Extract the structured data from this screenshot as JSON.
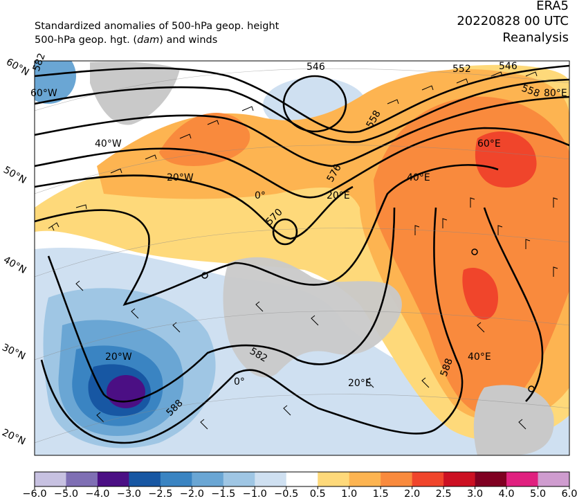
{
  "header": {
    "title_line1": "Standardized anomalies of 500-hPa geop. height",
    "title_line2_pre": "500-hPa geop. hgt. (",
    "title_line2_unit": "dam",
    "title_line2_post": ") and winds",
    "source": "ERA5",
    "datetime": "20220828 00 UTC",
    "product": "Reanalysis"
  },
  "map": {
    "lat_labels": [
      "60°N",
      "50°N",
      "40°N",
      "30°N",
      "20°N"
    ],
    "grid_labels": [
      "60°W",
      "40°W",
      "20°W",
      "0°",
      "20°E",
      "40°E",
      "60°E",
      "80°E",
      "20°W",
      "0°",
      "20°E",
      "40°E"
    ],
    "contour_labels": [
      "546",
      "552",
      "546",
      "558",
      "558",
      "570",
      "576",
      "582",
      "588",
      "588",
      "582"
    ],
    "highs_marker": "o"
  },
  "colorbar": {
    "ticks": [
      "−6.0",
      "−5.0",
      "−4.0",
      "−3.0",
      "−2.5",
      "−2.0",
      "−1.5",
      "−1.0",
      "−0.5",
      "0.5",
      "1.0",
      "1.5",
      "2.0",
      "2.5",
      "3.0",
      "4.0",
      "5.0",
      "6.0"
    ],
    "colors": [
      "#c7c1e1",
      "#7f6fb4",
      "#4b0f84",
      "#1757a3",
      "#3a84c2",
      "#6aa6d4",
      "#9fc6e4",
      "#cfe0f1",
      "#ffffff",
      "#fed97a",
      "#fdb451",
      "#f98a3d",
      "#f0452b",
      "#cc1022",
      "#7f0021",
      "#e0207f",
      "#cf9ccf"
    ]
  }
}
